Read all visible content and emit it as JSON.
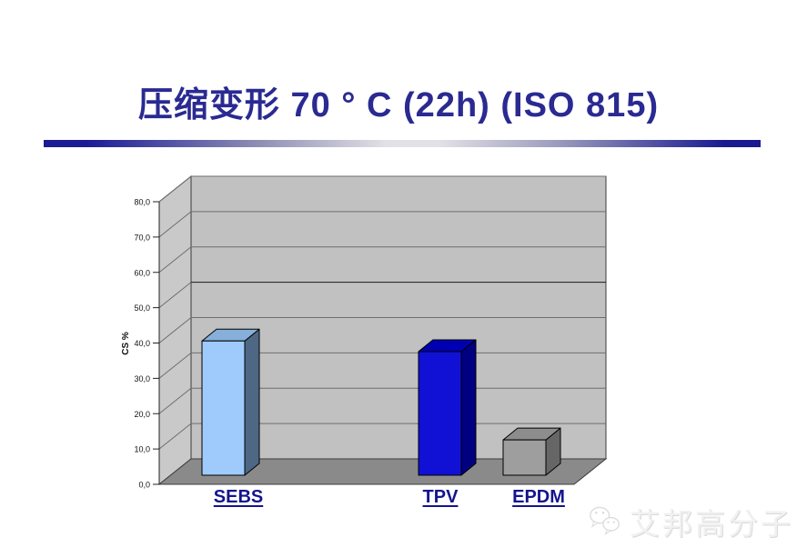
{
  "slide": {
    "title": "压缩变形 70 ° C (22h) (ISO 815)"
  },
  "theme": {
    "title_color": "#2a2a92",
    "divider_navy": "#1b1b96",
    "category_label_color": "#14148e"
  },
  "chart_data": {
    "type": "bar",
    "projection": "3d",
    "title": "",
    "categories": [
      "SEBS",
      "TPV",
      "EPDM"
    ],
    "values": [
      38,
      35,
      10
    ],
    "xlabel": "",
    "ylabel": "CS %",
    "ylim": [
      0,
      80
    ],
    "ytick_step": 10,
    "ytick_labels": [
      "0,0",
      "10,0",
      "20,0",
      "30,0",
      "40,0",
      "50,0",
      "60,0",
      "70,0",
      "80,0"
    ],
    "grid": true,
    "legend": "none",
    "bar_colors": [
      {
        "name": "SEBS",
        "front": "#9ecbfb",
        "top": "#86afd9",
        "side": "#4d6785"
      },
      {
        "name": "TPV",
        "front": "#1111d6",
        "top": "#0000b2",
        "side": "#000080"
      },
      {
        "name": "EPDM",
        "front": "#9e9e9e",
        "top": "#8d8d8d",
        "side": "#666666"
      }
    ],
    "wall_color": "#c1c1c1",
    "side_wall_color": "#c9c9c9",
    "floor_color": "#8a8a8a"
  },
  "watermark": {
    "icon": "wechat-logo-icon",
    "text": "艾邦高分子"
  }
}
